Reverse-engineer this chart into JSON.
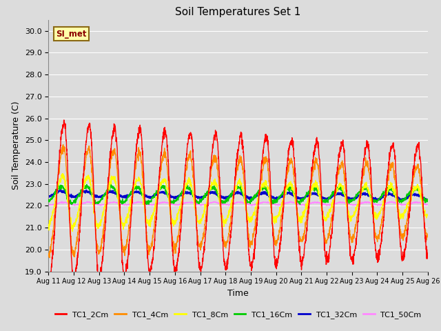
{
  "title": "Soil Temperatures Set 1",
  "xlabel": "Time",
  "ylabel": "Soil Temperature (C)",
  "annotation": "SI_met",
  "ylim": [
    19.0,
    30.5
  ],
  "yticks": [
    19.0,
    20.0,
    21.0,
    22.0,
    23.0,
    24.0,
    25.0,
    26.0,
    27.0,
    28.0,
    29.0,
    30.0
  ],
  "xtick_labels": [
    "Aug 11",
    "Aug 12",
    "Aug 13",
    "Aug 14",
    "Aug 15",
    "Aug 16",
    "Aug 17",
    "Aug 18",
    "Aug 19",
    "Aug 20",
    "Aug 21",
    "Aug 22",
    "Aug 23",
    "Aug 24",
    "Aug 25",
    "Aug 26"
  ],
  "series": {
    "TC1_2Cm": {
      "color": "#FF0000",
      "lw": 1.0
    },
    "TC1_4Cm": {
      "color": "#FF8C00",
      "lw": 1.0
    },
    "TC1_8Cm": {
      "color": "#FFFF00",
      "lw": 1.0
    },
    "TC1_16Cm": {
      "color": "#00CC00",
      "lw": 1.0
    },
    "TC1_32Cm": {
      "color": "#0000CC",
      "lw": 1.5
    },
    "TC1_50Cm": {
      "color": "#FF88FF",
      "lw": 1.0
    }
  },
  "fig_bg": "#DCDCDC",
  "plot_bg": "#DCDCDC",
  "legend_labels": [
    "TC1_2Cm",
    "TC1_4Cm",
    "TC1_8Cm",
    "TC1_16Cm",
    "TC1_32Cm",
    "TC1_50Cm"
  ],
  "legend_colors": [
    "#FF0000",
    "#FF8C00",
    "#FFFF00",
    "#00CC00",
    "#0000CC",
    "#FF88FF"
  ]
}
